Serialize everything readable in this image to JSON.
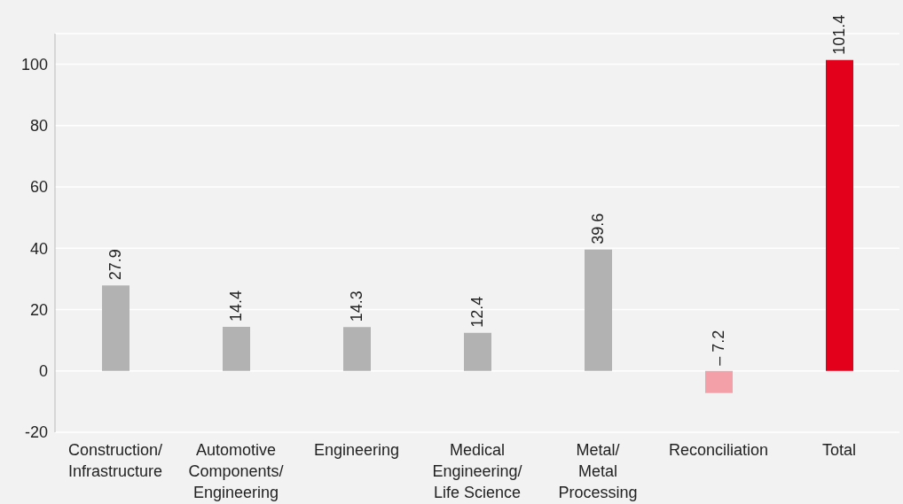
{
  "chart_data": {
    "type": "bar",
    "categories": [
      "Construction/\nInfrastructure",
      "Automotive\nComponents/\nEngineering",
      "Engineering",
      "Medical\nEngineering/\nLife Science",
      "Metal/\nMetal\nProcessing",
      "Reconciliation",
      "Total"
    ],
    "values": [
      27.9,
      14.4,
      14.3,
      12.4,
      39.6,
      -7.2,
      101.4
    ],
    "value_labels": [
      "27.9",
      "14.4",
      "14.3",
      "12.4",
      "39.6",
      "– 7.2",
      "101.4"
    ],
    "colors": [
      "#b2b2b2",
      "#b2b2b2",
      "#b2b2b2",
      "#b2b2b2",
      "#b2b2b2",
      "#f4a0a8",
      "#e2001a"
    ],
    "ylim": [
      -20,
      110
    ],
    "yticks": [
      -20,
      0,
      20,
      40,
      60,
      80,
      100
    ],
    "grid": "y"
  }
}
